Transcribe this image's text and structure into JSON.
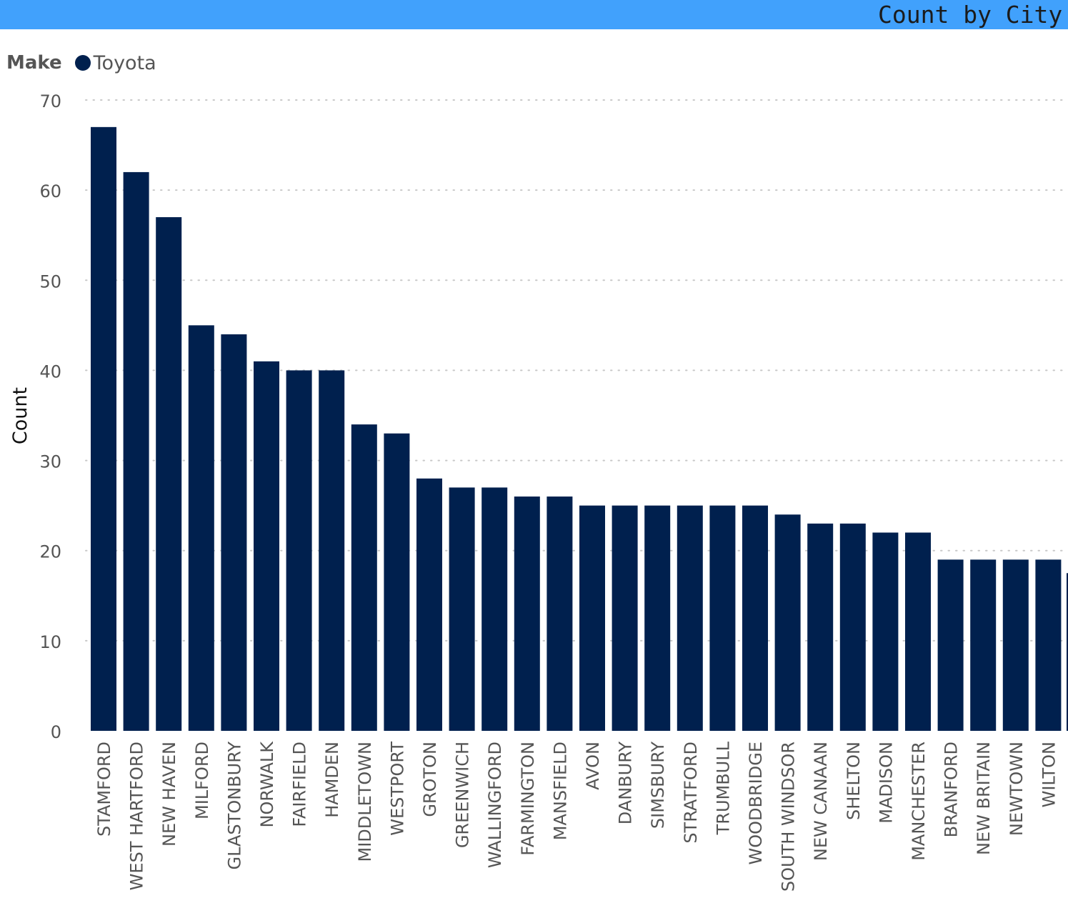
{
  "chart_title": "Count by City a",
  "legend": {
    "title": "Make",
    "series_name": "Toyota"
  },
  "colors": {
    "bar": "#00204e",
    "title_bar": "#41a1fc",
    "grid": "#c8c8c8",
    "tick_text": "#555555",
    "axis_title": "#111111"
  },
  "chart_data": {
    "type": "bar",
    "ylabel": "Count",
    "xlabel": "",
    "ylim": [
      0,
      70
    ],
    "yticks": [
      0,
      10,
      20,
      30,
      40,
      50,
      60,
      70
    ],
    "grid": true,
    "legend_position": "top-left",
    "categories": [
      "STAMFORD",
      "WEST HARTFORD",
      "NEW HAVEN",
      "MILFORD",
      "GLASTONBURY",
      "NORWALK",
      "FAIRFIELD",
      "HAMDEN",
      "MIDDLETOWN",
      "WESTPORT",
      "GROTON",
      "GREENWICH",
      "WALLINGFORD",
      "FARMINGTON",
      "MANSFIELD",
      "AVON",
      "DANBURY",
      "SIMSBURY",
      "STRATFORD",
      "TRUMBULL",
      "WOODBRIDGE",
      "SOUTH WINDSOR",
      "NEW CANAAN",
      "SHELTON",
      "MADISON",
      "MANCHESTER",
      "BRANFORD",
      "NEW BRITAIN",
      "NEWTOWN",
      "WILTON"
    ],
    "series": [
      {
        "name": "Toyota",
        "values": [
          67,
          62,
          57,
          45,
          44,
          41,
          40,
          40,
          34,
          33,
          28,
          27,
          27,
          26,
          26,
          25,
          25,
          25,
          25,
          25,
          25,
          24,
          23,
          23,
          22,
          22,
          19,
          19,
          19,
          19
        ]
      }
    ]
  }
}
